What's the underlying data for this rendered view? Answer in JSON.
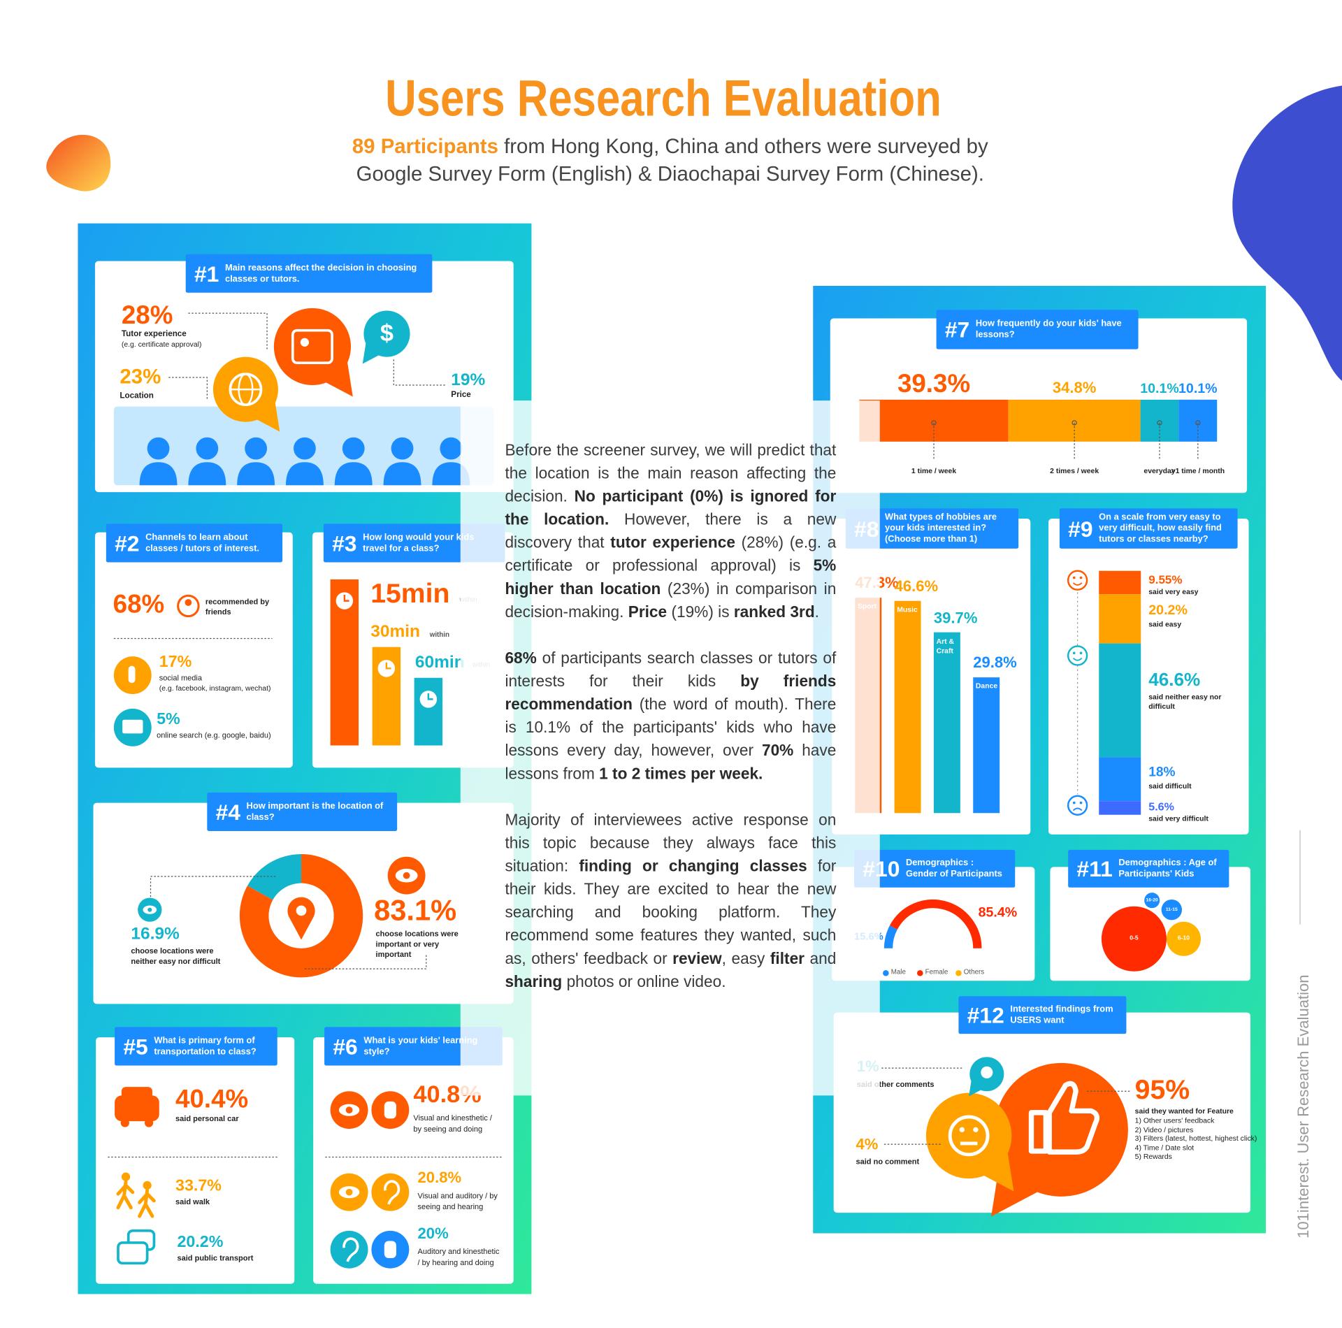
{
  "header": {
    "title": "Users Research Evaluation",
    "highlight": "89 Participants",
    "subtitle_line1": " from Hong Kong, China and others were surveyed by",
    "subtitle_line2": "Google Survey Form (English) & Diaochapai Survey Form (Chinese)."
  },
  "side_label": "101interest. User Research Evaluation",
  "paragraphs": [
    [
      {
        "text": "Before the screener survey, we will predict that the location is the main reason affecting the decision. ",
        "bold": false
      },
      {
        "text": "No participant (0%) is ignored for the location.",
        "bold": true
      },
      {
        "text": " However, there is a new discovery that ",
        "bold": false
      },
      {
        "text": "tutor experience",
        "bold": true
      },
      {
        "text": " (28%) (e.g. a certificate or professional approval) is ",
        "bold": false
      },
      {
        "text": "5% higher than location",
        "bold": true
      },
      {
        "text": " (23%) in comparison in decision-making. ",
        "bold": false
      },
      {
        "text": "Price",
        "bold": true
      },
      {
        "text": " (19%) is ",
        "bold": false
      },
      {
        "text": "ranked 3rd",
        "bold": true
      },
      {
        "text": ".",
        "bold": false
      }
    ],
    [
      {
        "text": "68%",
        "bold": true
      },
      {
        "text": " of participants search classes or tutors of interests for their kids ",
        "bold": false
      },
      {
        "text": "by friends recommendation",
        "bold": true
      },
      {
        "text": " (the word of mouth). There is 10.1% of the participants' kids who have lessons every day, however, over ",
        "bold": false
      },
      {
        "text": "70%",
        "bold": true
      },
      {
        "text": " have lessons from ",
        "bold": false
      },
      {
        "text": "1 to 2 times per week.",
        "bold": true
      }
    ],
    [
      {
        "text": "Majority of interviewees active response on this topic because they always face this situation: ",
        "bold": false
      },
      {
        "text": "finding or changing classes",
        "bold": true
      },
      {
        "text": " for their kids. They are excited to hear the new searching and booking platform. They recommend some features they wanted, such as, others' feedback or ",
        "bold": false
      },
      {
        "text": "review",
        "bold": true
      },
      {
        "text": ", easy ",
        "bold": false
      },
      {
        "text": "filter",
        "bold": true
      },
      {
        "text": " and ",
        "bold": false
      },
      {
        "text": "sharing",
        "bold": true
      },
      {
        "text": " photos or online video.",
        "bold": false
      }
    ]
  ],
  "sections": {
    "q1": {
      "number": "#1",
      "question": "Main reasons affect the decision in choosing classes or tutors.",
      "price_icon": "$",
      "items": [
        {
          "value": "28%",
          "label": "Tutor experience",
          "note": "(e.g. certificate approval)"
        },
        {
          "value": "23%",
          "label": "Location"
        },
        {
          "value": "19%",
          "label": "Price"
        }
      ]
    },
    "q2": {
      "number": "#2",
      "question": "Channels to learn about classes / tutors of interest.",
      "items": [
        {
          "value": "68%",
          "label": "recommended by friends"
        },
        {
          "value": "17%",
          "label": "social media",
          "note": "(e.g. facebook, instagram, wechat)"
        },
        {
          "value": "5%",
          "label": "online search (e.g. google, baidu)"
        }
      ]
    },
    "q3": {
      "number": "#3",
      "question": "How long would your kids travel for a class?",
      "items": [
        {
          "value": "15min",
          "note": "within"
        },
        {
          "value": "30min",
          "note": "within"
        },
        {
          "value": "60min",
          "note": "within"
        }
      ]
    },
    "q4": {
      "number": "#4",
      "question": "How important is the location of class?",
      "type": "donut",
      "labels": [
        "choose locations were neither easy nor difficult",
        "choose locations were important or very important"
      ],
      "values": [
        16.9,
        83.1
      ],
      "value_labels": [
        "16.9%",
        "83.1%"
      ],
      "colors": [
        "#12b5cb",
        "#ff5a00"
      ]
    },
    "q5": {
      "number": "#5",
      "question": "What is primary form of transportation to class?",
      "items": [
        {
          "value": "40.4%",
          "label": "said personal car"
        },
        {
          "value": "33.7%",
          "label": "said walk"
        },
        {
          "value": "20.2%",
          "label": "said public transport"
        }
      ]
    },
    "q6": {
      "number": "#6",
      "question": "What is your kids' learning style?",
      "items": [
        {
          "value": "40.8%",
          "label": "Visual and kinesthetic / by seeing and doing"
        },
        {
          "value": "20.8%",
          "label": "Visual and auditory / by seeing and hearing"
        },
        {
          "value": "20%",
          "label": "Auditory and kinesthetic / by hearing and doing"
        }
      ]
    },
    "q7": {
      "number": "#7",
      "question": "How frequently do your kids' have lessons?",
      "type": "stacked-bar",
      "categories": [
        "1 time / week",
        "2 times / week",
        "everyday",
        ">1 time / month"
      ],
      "values": [
        39.3,
        34.8,
        10.1,
        10.1
      ],
      "value_labels": [
        "39.3%",
        "34.8%",
        "10.1%",
        "10.1%"
      ],
      "colors": [
        "#ff5a00",
        "#ffa200",
        "#12b5cb",
        "#1a8cff"
      ]
    },
    "q8": {
      "number": "#8",
      "question": "What types of hobbies are your kids interested in? (Choose more than 1)",
      "type": "bar",
      "categories": [
        "Sport",
        "Music",
        "Art & Craft",
        "Dance"
      ],
      "values": [
        47.3,
        46.6,
        39.7,
        29.8
      ],
      "value_labels": [
        "47.3%",
        "46.6%",
        "39.7%",
        "29.8%"
      ],
      "colors": [
        "#ff5a00",
        "#ffa200",
        "#12b5cb",
        "#1a8cff"
      ]
    },
    "q9": {
      "number": "#9",
      "question": "On a scale from very easy to very difficult, how easily find tutors or classes nearby?",
      "type": "stacked-column",
      "categories": [
        "said very easy",
        "said easy",
        "said neither easy nor difficult",
        "said difficult",
        "said very difficult"
      ],
      "values": [
        9.55,
        20.2,
        46.6,
        18,
        5.6
      ],
      "value_labels": [
        "9.55%",
        "20.2%",
        "46.6%",
        "18%",
        "5.6%"
      ],
      "colors": [
        "#ff5a00",
        "#ffa200",
        "#12b5cb",
        "#1a8cff",
        "#3d6bff"
      ]
    },
    "q10": {
      "number": "#10",
      "question": "Demographics : Gender of Participants",
      "type": "gauge",
      "categories": [
        "Male",
        "Female",
        "Others"
      ],
      "values": [
        15.6,
        85.4,
        null
      ],
      "value_labels": [
        "15.6%",
        "85.4%",
        null
      ],
      "colors": [
        "#1a8cff",
        "#ff2a00",
        "#ffb400"
      ]
    },
    "q11": {
      "number": "#11",
      "question": "Demographics : Age of Participants' Kids",
      "groups": [
        "0-5",
        "6-10",
        "11-15",
        "16-20"
      ]
    },
    "q12": {
      "number": "#12",
      "question": "Interested findings from USERS want",
      "items": [
        {
          "value": "1%",
          "label": "said other comments"
        },
        {
          "value": "4%",
          "label": "said no comment"
        },
        {
          "value": "95%",
          "label": "said they wanted for Feature"
        }
      ],
      "features": [
        "1) Other users' feedback",
        "2) Video / pictures",
        "3) Filters (latest, hottest, highest click)",
        "4) Time / Date slot",
        "5) Rewards"
      ]
    }
  }
}
